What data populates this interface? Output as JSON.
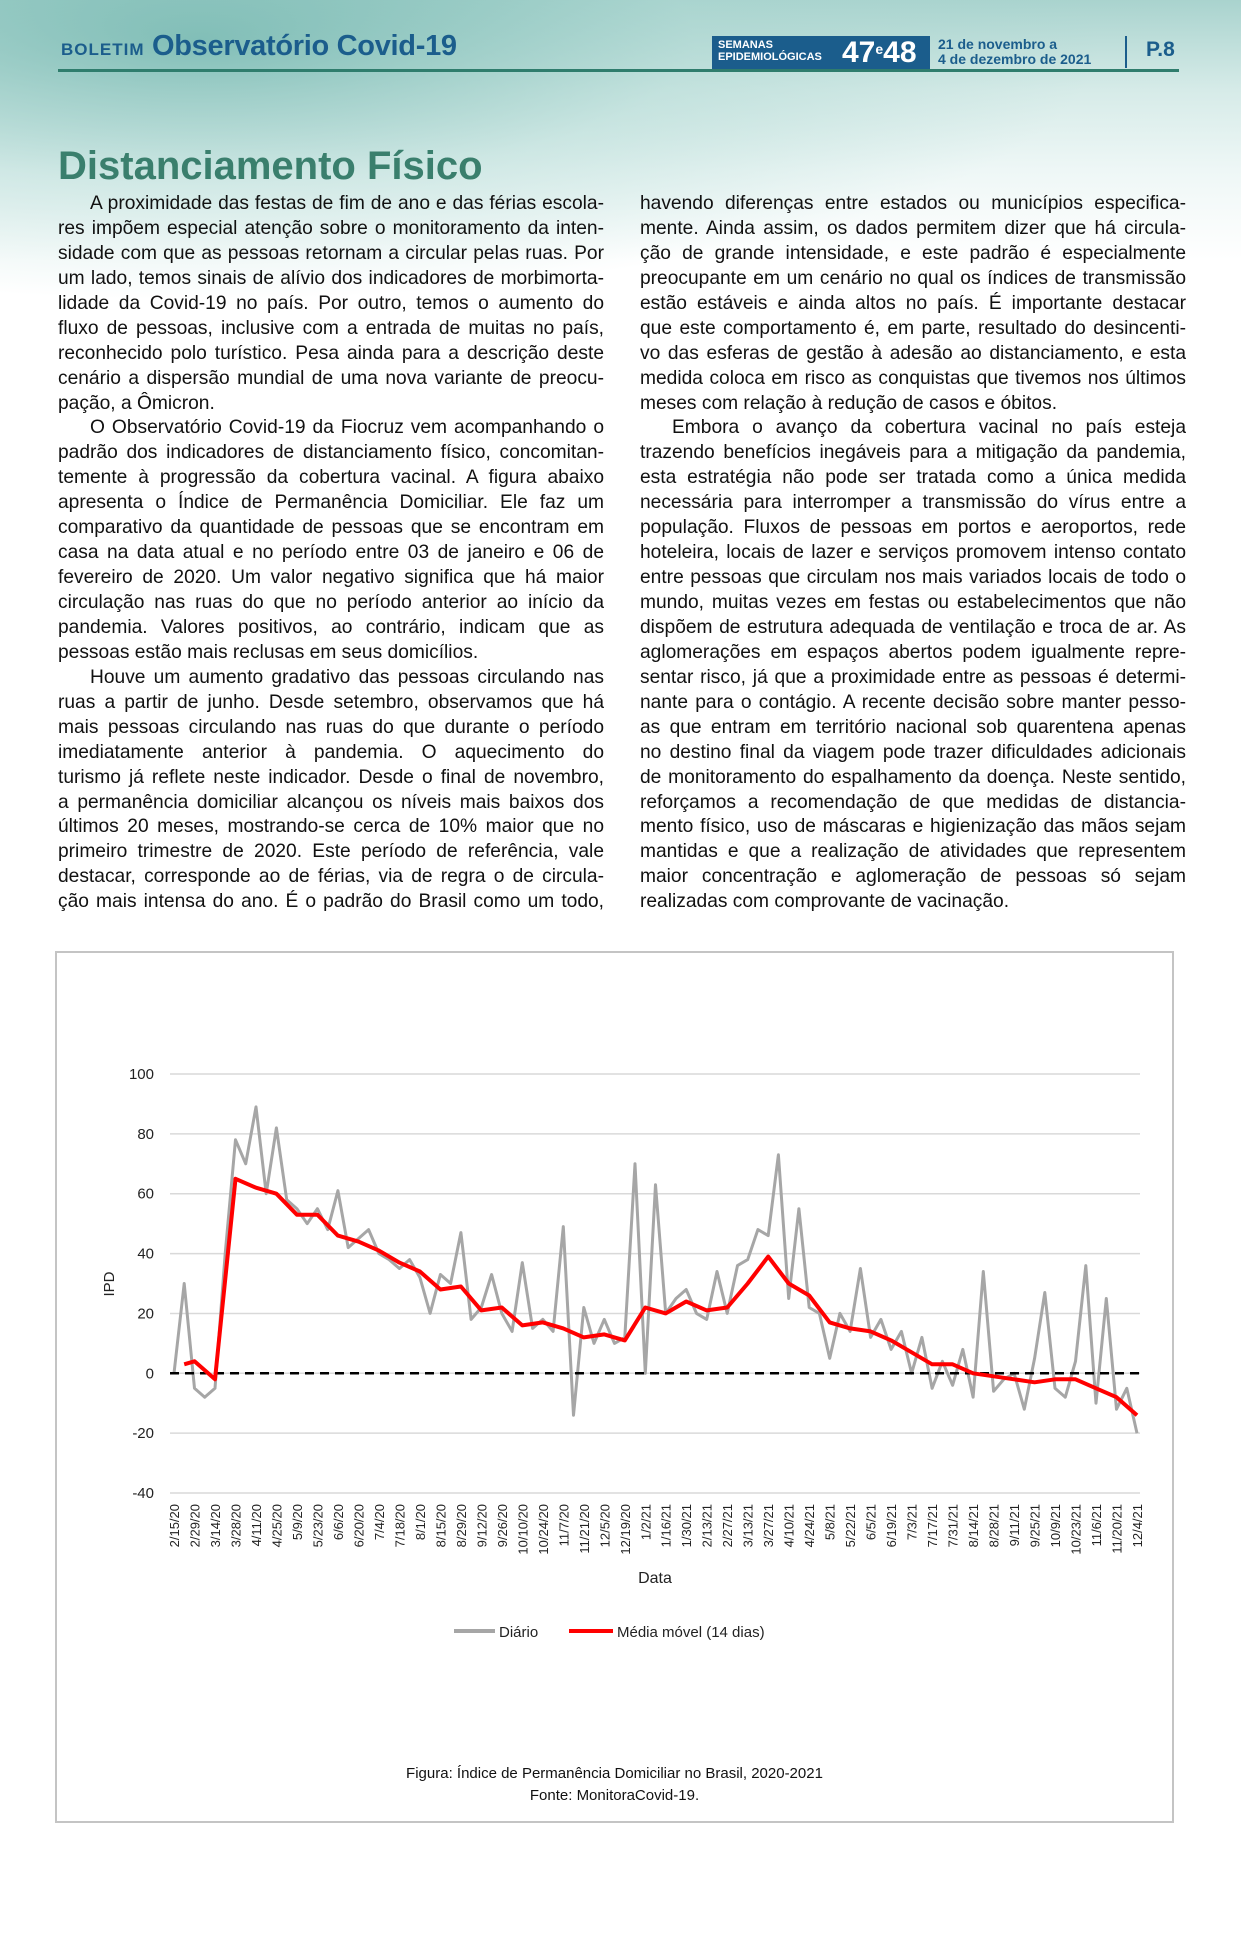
{
  "header": {
    "boletim": "BOLETIM",
    "title": "Observatório Covid-19",
    "weeks_label_1": "SEMANAS",
    "weeks_label_2": "EPIDEMIOLÓGICAS",
    "weeks_number": "47e48",
    "weeks_a": "47",
    "weeks_e": "e",
    "weeks_b": "48",
    "date_line_1": "21 de novembro a",
    "date_line_2": "4 de dezembro de 2021",
    "page": "P.8"
  },
  "article": {
    "title": "Distanciamento Físico",
    "left_column": [
      [
        "A proximidade das festas de fim de ano e das férias escola-",
        "res impõem especial atenção sobre o monitoramento da inten-",
        "sidade com que as pessoas retornam a circular pelas ruas. Por",
        "um lado, temos sinais de alívio dos indicadores de morbimorta-",
        "lidade da Covid-19 no país. Por outro, temos o aumento do",
        "fluxo de pessoas, inclusive com a entrada de muitas no país,",
        "reconhecido polo turístico. Pesa ainda para a descrição deste",
        "cenário a dispersão mundial de uma nova variante de preocu-",
        "pação, a Ômicron."
      ],
      [
        "O Observatório Covid-19 da Fiocruz vem acompanhando o",
        "padrão dos indicadores de distanciamento físico, concomitan-",
        "temente à progressão da cobertura vacinal. A figura abaixo",
        "apresenta o Índice de Permanência Domiciliar. Ele faz um",
        "comparativo da quantidade de pessoas que se encontram em",
        "casa na data atual e no período entre 03 de janeiro e 06 de",
        "fevereiro de 2020. Um valor negativo significa que há maior",
        "circulação nas ruas do que no período anterior ao início da",
        "pandemia. Valores positivos, ao contrário, indicam que as",
        "pessoas estão mais reclusas em seus domicílios."
      ],
      [
        "Houve um aumento gradativo das pessoas circulando nas",
        "ruas a partir de junho. Desde setembro, observamos que há",
        "mais pessoas circulando nas ruas do que durante o período",
        "imediatamente anterior à pandemia. O aquecimento do",
        "turismo já reflete neste indicador. Desde o final de novembro,",
        "a permanência domiciliar alcançou os níveis mais baixos dos",
        "últimos 20 meses, mostrando-se cerca de 10% maior que no",
        "primeiro trimestre de 2020. Este período de referência, vale",
        "destacar, corresponde ao de férias, via de regra o de circula-",
        "ção mais intensa do ano. É o padrão do Brasil como um todo,"
      ]
    ],
    "right_column": [
      [
        "havendo diferenças entre estados ou municípios especifica-",
        "mente. Ainda assim, os dados permitem dizer que há circula-",
        "ção de grande intensidade, e este padrão é especialmente",
        "preocupante em um cenário no qual os índices de transmissão",
        "estão estáveis e ainda altos no país. É importante destacar",
        "que este comportamento é, em parte, resultado do desincenti-",
        "vo das esferas de gestão à adesão ao distanciamento, e esta",
        "medida coloca em risco as conquistas que tivemos nos últimos",
        "meses com relação à redução de casos e óbitos."
      ],
      [
        "Embora o avanço da cobertura vacinal no país esteja",
        "trazendo benefícios inegáveis para a mitigação da pandemia,",
        "esta estratégia não pode ser tratada como a única medida",
        "necessária para interromper a transmissão do vírus entre a",
        "população. Fluxos de pessoas em portos e aeroportos, rede",
        "hoteleira, locais de lazer e serviços promovem intenso contato",
        "entre pessoas que circulam nos mais variados locais de todo o",
        "mundo, muitas vezes em festas ou estabelecimentos que não",
        "dispõem de estrutura adequada de ventilação e troca de ar. As",
        "aglomerações em espaços abertos podem igualmente repre-",
        "sentar risco, já que a proximidade entre as pessoas é determi-",
        "nante para o contágio. A recente decisão sobre manter pesso-",
        "as que entram em território nacional sob quarentena apenas",
        "no destino final da viagem pode trazer dificuldades adicionais",
        "de monitoramento do espalhamento da doença. Neste sentido,",
        "reforçamos a recomendação de que medidas de distancia-",
        "mento físico, uso de máscaras e higienização das mãos sejam",
        "mantidas e que a realização de atividades que representem",
        "maior concentração e aglomeração de pessoas só sejam",
        "realizadas com comprovante de vacinação."
      ]
    ]
  },
  "figure": {
    "caption": "Figura: Índice de Permanência Domiciliar no Brasil, 2020-2021",
    "source": "Fonte: MonitoraCovid-19."
  },
  "chart_data": {
    "type": "line",
    "title": "",
    "xlabel": "Data",
    "ylabel": "IPD",
    "ylim": [
      -40,
      100
    ],
    "yticks": [
      100,
      80,
      60,
      40,
      20,
      0,
      -20,
      -40
    ],
    "grid": true,
    "reference_line": {
      "y": 0,
      "style": "dashed",
      "color": "#000000"
    },
    "legend_position": "bottom",
    "x_ticks": [
      "2/15/20",
      "2/29/20",
      "3/14/20",
      "3/28/20",
      "4/11/20",
      "4/25/20",
      "5/9/20",
      "5/23/20",
      "6/6/20",
      "6/20/20",
      "7/4/20",
      "7/18/20",
      "8/1/20",
      "8/15/20",
      "8/29/20",
      "9/12/20",
      "9/26/20",
      "10/10/20",
      "10/24/20",
      "11/7/20",
      "11/21/20",
      "12/5/20",
      "12/19/20",
      "1/2/21",
      "1/16/21",
      "1/30/21",
      "2/13/21",
      "2/27/21",
      "3/13/21",
      "3/27/21",
      "4/10/21",
      "4/24/21",
      "5/8/21",
      "5/22/21",
      "6/5/21",
      "6/19/21",
      "7/3/21",
      "7/17/21",
      "7/31/21",
      "8/14/21",
      "8/28/21",
      "9/11/21",
      "9/25/21",
      "10/9/21",
      "10/23/21",
      "11/6/21",
      "11/20/21",
      "12/4/21"
    ],
    "series": [
      {
        "name": "Diário",
        "color": "#a6a6a6",
        "x": [
          "2/15/20",
          "2/22/20",
          "2/29/20",
          "3/7/20",
          "3/14/20",
          "3/21/20",
          "3/28/20",
          "4/4/20",
          "4/11/20",
          "4/18/20",
          "4/25/20",
          "5/2/20",
          "5/9/20",
          "5/16/20",
          "5/23/20",
          "5/30/20",
          "6/6/20",
          "6/13/20",
          "6/20/20",
          "6/27/20",
          "7/4/20",
          "7/11/20",
          "7/18/20",
          "7/25/20",
          "8/1/20",
          "8/8/20",
          "8/15/20",
          "8/22/20",
          "8/29/20",
          "9/5/20",
          "9/12/20",
          "9/19/20",
          "9/26/20",
          "10/3/20",
          "10/10/20",
          "10/17/20",
          "10/24/20",
          "10/31/20",
          "11/7/20",
          "11/14/20",
          "11/21/20",
          "11/28/20",
          "12/5/20",
          "12/12/20",
          "12/19/20",
          "12/26/20",
          "1/2/21",
          "1/9/21",
          "1/16/21",
          "1/23/21",
          "1/30/21",
          "2/6/21",
          "2/13/21",
          "2/20/21",
          "2/27/21",
          "3/6/21",
          "3/13/21",
          "3/20/21",
          "3/27/21",
          "4/3/21",
          "4/10/21",
          "4/17/21",
          "4/24/21",
          "5/1/21",
          "5/8/21",
          "5/15/21",
          "5/22/21",
          "5/29/21",
          "6/5/21",
          "6/12/21",
          "6/19/21",
          "6/26/21",
          "7/3/21",
          "7/10/21",
          "7/17/21",
          "7/24/21",
          "7/31/21",
          "8/7/21",
          "8/14/21",
          "8/21/21",
          "8/28/21",
          "9/4/21",
          "9/11/21",
          "9/18/21",
          "9/25/21",
          "10/2/21",
          "10/9/21",
          "10/16/21",
          "10/23/21",
          "10/30/21",
          "11/6/21",
          "11/13/21",
          "11/20/21",
          "11/27/21",
          "12/4/21"
        ],
        "values": [
          0,
          30,
          -5,
          -8,
          -5,
          40,
          78,
          70,
          89,
          60,
          82,
          58,
          55,
          50,
          55,
          48,
          61,
          42,
          45,
          48,
          40,
          38,
          35,
          38,
          32,
          20,
          33,
          30,
          47,
          18,
          22,
          33,
          20,
          14,
          37,
          15,
          18,
          14,
          49,
          -14,
          22,
          10,
          18,
          10,
          12,
          70,
          0,
          63,
          20,
          25,
          28,
          20,
          18,
          34,
          20,
          36,
          38,
          48,
          46,
          73,
          25,
          55,
          22,
          20,
          5,
          20,
          14,
          35,
          12,
          18,
          8,
          14,
          0,
          12,
          -5,
          4,
          -4,
          8,
          -8,
          34,
          -6,
          -2,
          0,
          -12,
          5,
          27,
          -5,
          -8,
          4,
          36,
          -10,
          25,
          -12,
          -5,
          -20
        ]
      },
      {
        "name": "Média móvel (14 dias)",
        "color": "#ff0000",
        "x": [
          "2/22/20",
          "2/29/20",
          "3/14/20",
          "3/28/20",
          "4/11/20",
          "4/25/20",
          "5/9/20",
          "5/23/20",
          "6/6/20",
          "6/20/20",
          "7/4/20",
          "7/18/20",
          "8/1/20",
          "8/15/20",
          "8/29/20",
          "9/12/20",
          "9/26/20",
          "10/10/20",
          "10/24/20",
          "11/7/20",
          "11/21/20",
          "12/5/20",
          "12/19/20",
          "1/2/21",
          "1/16/21",
          "1/30/21",
          "2/13/21",
          "2/27/21",
          "3/13/21",
          "3/27/21",
          "4/10/21",
          "4/24/21",
          "5/8/21",
          "5/22/21",
          "6/5/21",
          "6/19/21",
          "7/3/21",
          "7/17/21",
          "7/31/21",
          "8/14/21",
          "8/28/21",
          "9/11/21",
          "9/25/21",
          "10/9/21",
          "10/23/21",
          "11/6/21",
          "11/20/21",
          "12/4/21"
        ],
        "values": [
          3,
          4,
          -2,
          65,
          62,
          60,
          53,
          53,
          46,
          44,
          41,
          37,
          34,
          28,
          29,
          21,
          22,
          16,
          17,
          15,
          12,
          13,
          11,
          22,
          20,
          24,
          21,
          22,
          30,
          39,
          30,
          26,
          17,
          15,
          14,
          11,
          7,
          3,
          3,
          0,
          -1,
          -2,
          -3,
          -2,
          -2,
          -5,
          -8,
          -14
        ]
      }
    ]
  }
}
